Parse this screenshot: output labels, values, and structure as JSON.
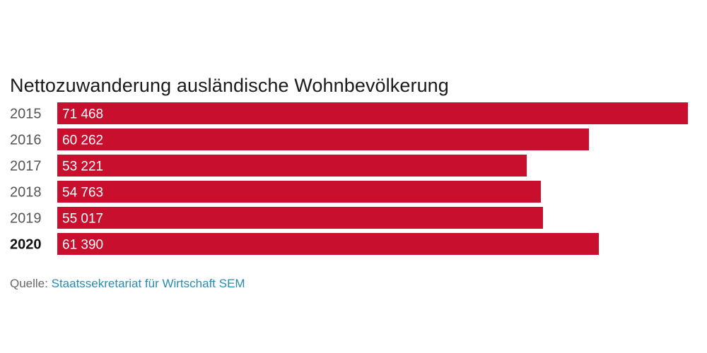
{
  "chart_data": {
    "type": "bar",
    "orientation": "horizontal",
    "title": "Nettozuwanderung ausländische Wohnbevölkerung",
    "categories": [
      "2015",
      "2016",
      "2017",
      "2018",
      "2019",
      "2020"
    ],
    "values": [
      71468,
      60262,
      53221,
      54763,
      55017,
      61390
    ],
    "value_labels": [
      "71 468",
      "60 262",
      "53 221",
      "54 763",
      "55 017",
      "61 390"
    ],
    "highlight_category": "2020",
    "bar_color": "#c8102e",
    "xlim": [
      0,
      71468
    ],
    "grid": false,
    "legend": "none"
  },
  "source": {
    "label": "Quelle:",
    "text": "Staatssekretariat für Wirtschaft SEM",
    "link_color": "#2a8ab0"
  }
}
